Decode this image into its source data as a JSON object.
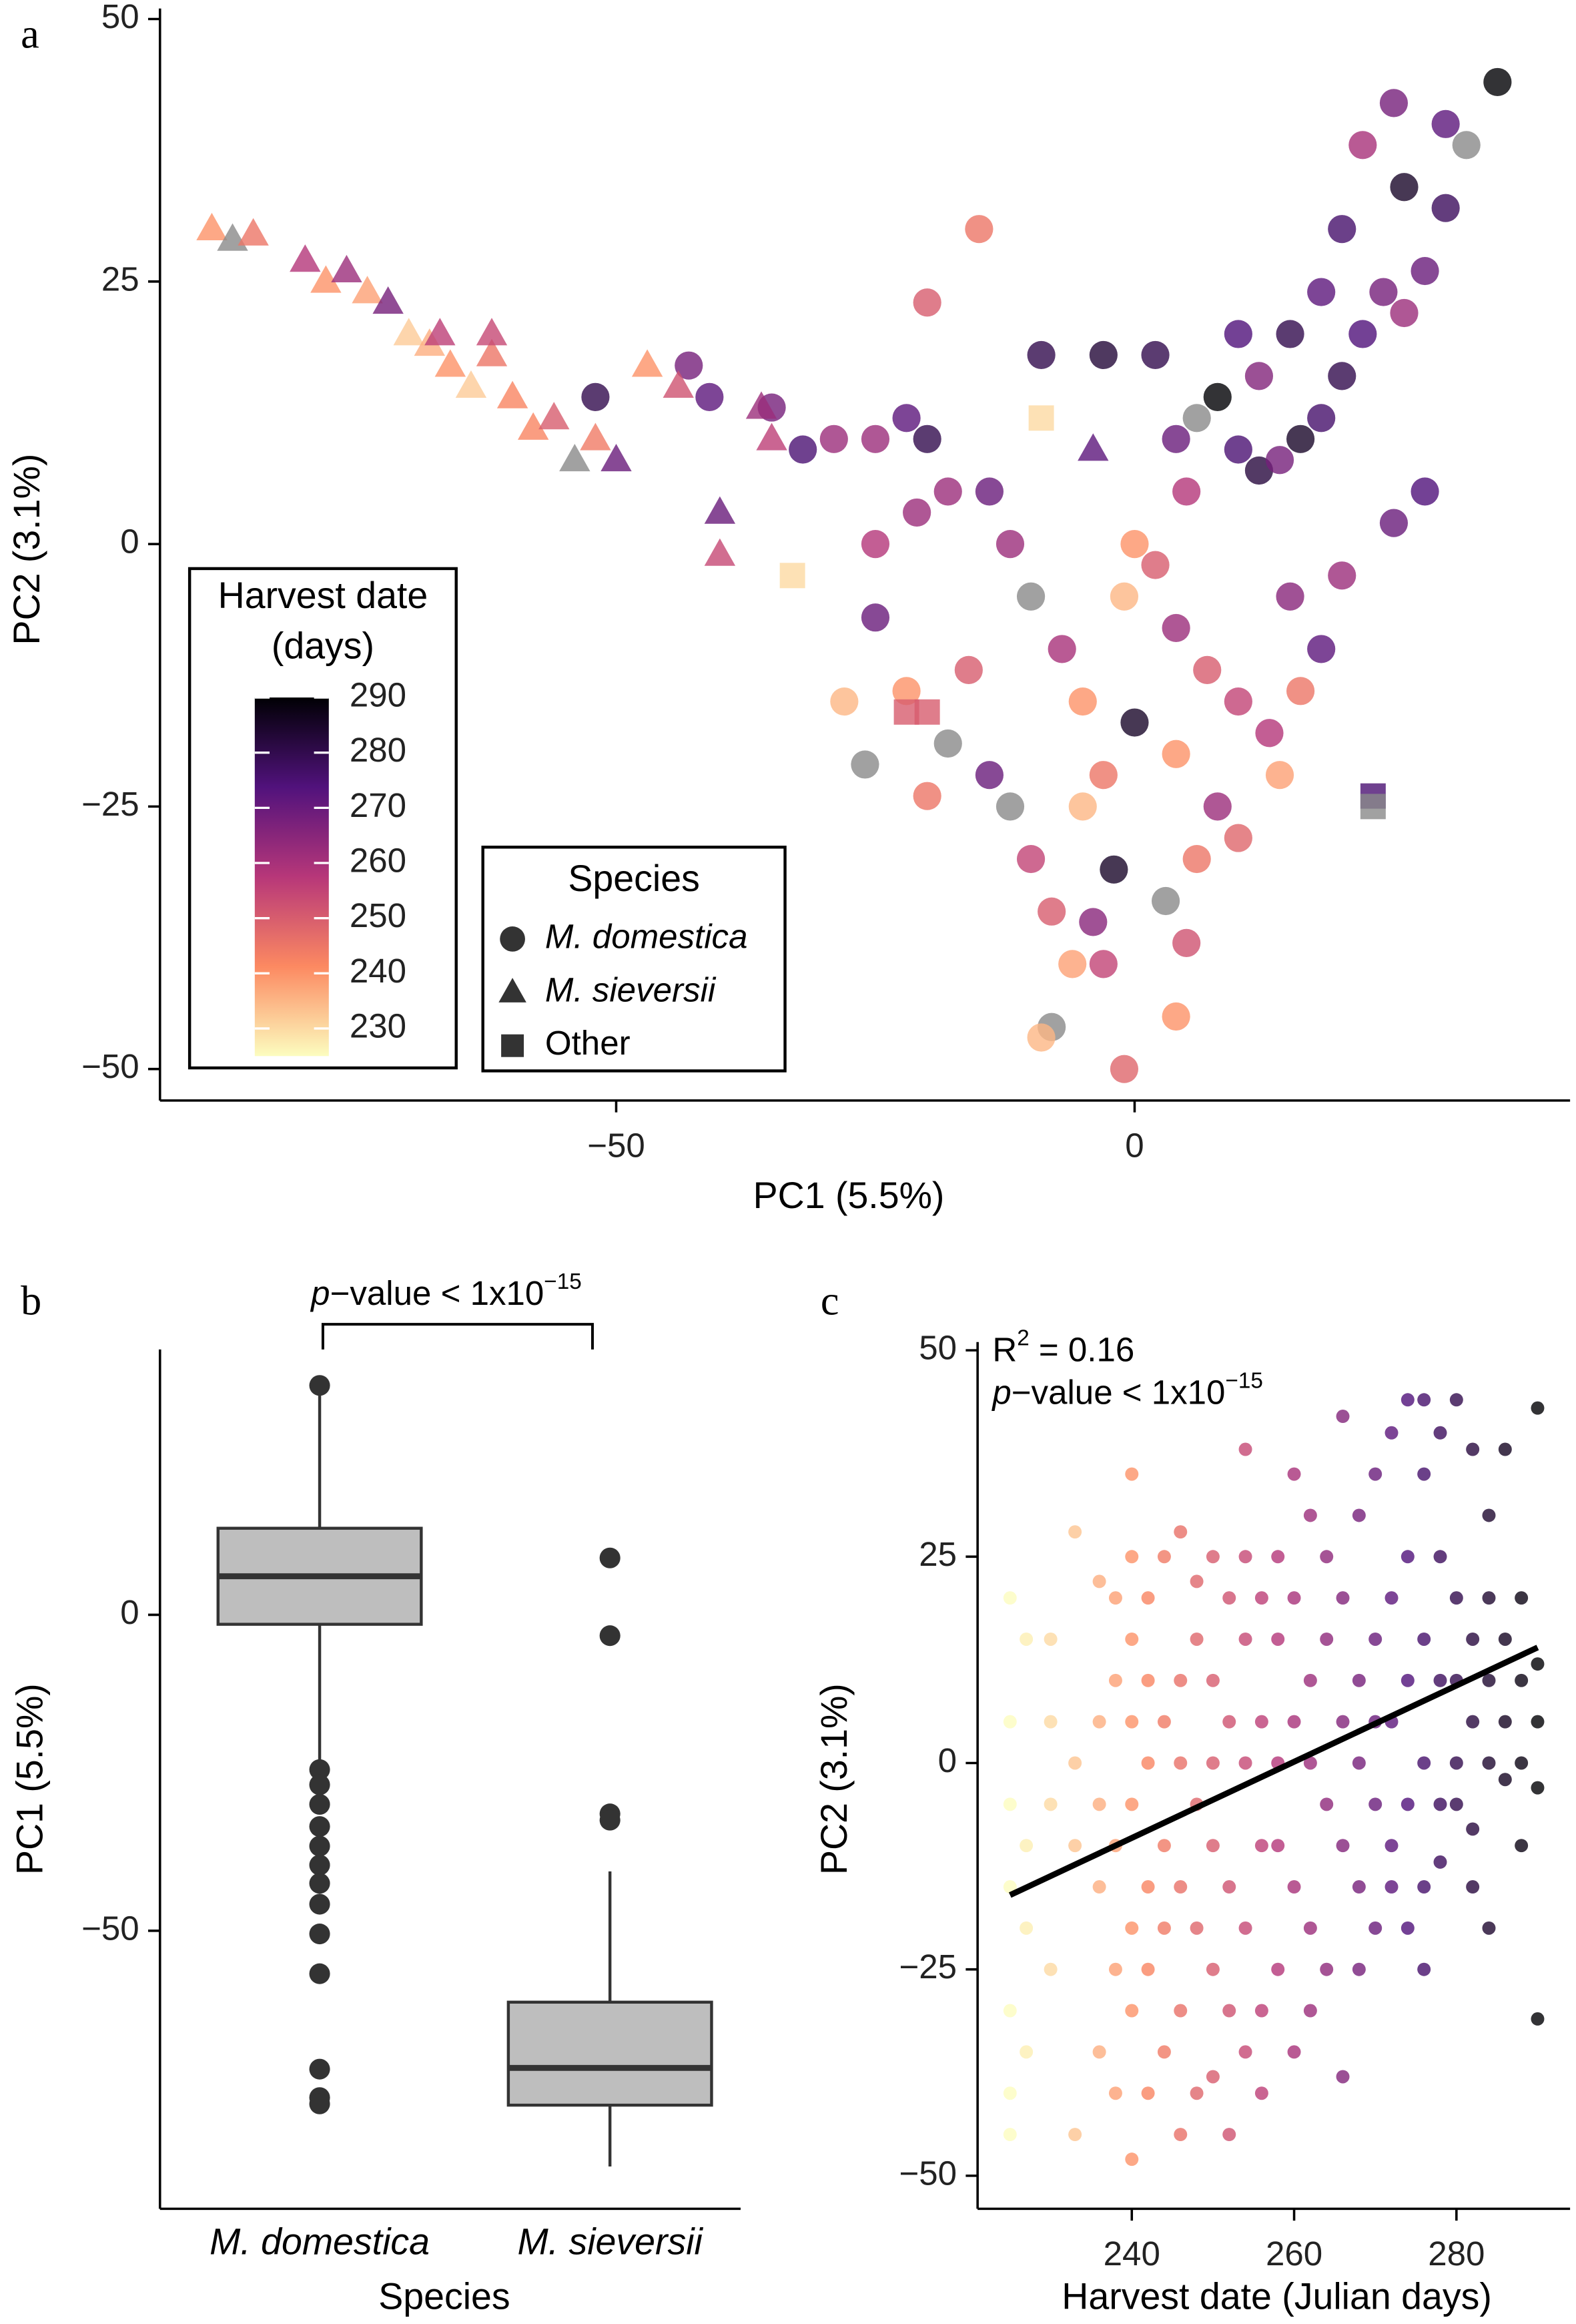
{
  "chart_data": [
    {
      "type": "scatter",
      "panel_label": "a",
      "x_label": "PC1 (5.5%)",
      "y_label": "PC2 (3.1%)",
      "xlim": [
        -94,
        42
      ],
      "ylim": [
        -53,
        51
      ],
      "xticks": [
        {
          "value": -50,
          "label": "−50"
        },
        0
      ],
      "yticks": [
        50,
        25,
        0,
        {
          "value": -25,
          "label": "−25"
        },
        {
          "value": -50,
          "label": "−50"
        }
      ],
      "colormap": [
        "#fcfdbf",
        "#fc8961",
        "#b73779",
        "#51127c",
        "#000004"
      ],
      "color_lim": [
        225,
        290
      ],
      "na_color": "#8a8a8a",
      "colorbar_title": [
        "Harvest date",
        "(days)"
      ],
      "colorbar_ticks": [
        230,
        240,
        250,
        260,
        270,
        280,
        290
      ],
      "legend_title": "Species",
      "series": [
        {
          "name": "M. domestica",
          "marker": "circle",
          "x": [
            -25,
            -52,
            -43,
            -41,
            -35,
            -32,
            -29,
            -25,
            -22,
            -20,
            -21,
            -18,
            -25,
            -28,
            -26,
            -22,
            -20,
            -18,
            -16,
            -14,
            -12,
            -10,
            -8,
            -6,
            -8,
            -2,
            -3,
            -5,
            -7,
            -10,
            -12,
            -14,
            -9,
            -3,
            2,
            4,
            6,
            8,
            10,
            12,
            14,
            16,
            18,
            20,
            22,
            24,
            26,
            28,
            30,
            26,
            22,
            25,
            30,
            32,
            35,
            20,
            18,
            15,
            12,
            10,
            5,
            2,
            0,
            -1,
            4,
            7,
            10,
            13,
            16,
            18,
            15,
            20,
            25,
            28,
            8,
            6,
            3,
            5,
            4,
            -1,
            -3,
            -4,
            10,
            14,
            -5,
            -15,
            -20,
            4,
            0,
            -9
          ],
          "y": [
            0,
            14,
            17,
            14,
            13,
            9,
            10,
            10,
            12,
            10,
            3,
            5,
            -7,
            -15,
            -21,
            -14,
            -24,
            -19,
            -12,
            -22,
            -25,
            -30,
            -35,
            -40,
            -46,
            -31,
            -22,
            -15,
            -10,
            -5,
            0,
            5,
            18,
            18,
            18,
            10,
            12,
            14,
            9,
            7,
            8,
            10,
            12,
            16,
            20,
            24,
            22,
            26,
            32,
            34,
            38,
            42,
            40,
            38,
            44,
            30,
            24,
            20,
            16,
            20,
            5,
            -2,
            0,
            -5,
            -8,
            -12,
            -15,
            -18,
            -14,
            -10,
            -5,
            -3,
            2,
            5,
            -25,
            -30,
            -34,
            -38,
            -45,
            -50,
            -40,
            -36,
            -28,
            -22,
            -25,
            30,
            23,
            -20,
            -17,
            -47
          ],
          "harvest_date": [
            258,
            280,
            268,
            272,
            268,
            275,
            262,
            262,
            272,
            280,
            262,
            262,
            270,
            235,
            null,
            240,
            245,
            null,
            250,
            270,
            null,
            255,
            250,
            238,
            null,
            285,
            245,
            240,
            260,
            null,
            262,
            270,
            280,
            283,
            280,
            270,
            null,
            290,
            275,
            282,
            268,
            285,
            276,
            280,
            274,
            268,
            262,
            270,
            278,
            285,
            260,
            268,
            272,
            null,
            290,
            276,
            272,
            280,
            266,
            274,
            258,
            250,
            240,
            235,
            262,
            250,
            255,
            258,
            245,
            272,
            265,
            262,
            270,
            274,
            262,
            245,
            null,
            252,
            240,
            248,
            255,
            265,
            248,
            238,
            235,
            245,
            250,
            240,
            285,
            235
          ]
        },
        {
          "name": "M. sieversii",
          "marker": "triangle",
          "x": [
            -89,
            -87,
            -85,
            -80,
            -78,
            -76,
            -74,
            -72,
            -70,
            -68,
            -66,
            -64,
            -62,
            -60,
            -58,
            -56,
            -54,
            -52,
            -50,
            -47,
            -44,
            -36,
            -35,
            -40,
            -40,
            -4,
            -67,
            -62
          ],
          "y": [
            30,
            29,
            29.5,
            27,
            25,
            26,
            24,
            23,
            20,
            19,
            17,
            15,
            18,
            14,
            11,
            12,
            8,
            10,
            8,
            17,
            15,
            13,
            10,
            3,
            -1,
            9,
            20,
            20
          ],
          "harvest_date": [
            240,
            null,
            245,
            258,
            240,
            262,
            238,
            268,
            232,
            236,
            240,
            232,
            245,
            242,
            242,
            250,
            null,
            244,
            270,
            240,
            252,
            262,
            256,
            270,
            254,
            272,
            256,
            254
          ]
        },
        {
          "name": "Other",
          "marker": "square",
          "x": [
            -33,
            -9,
            -22,
            -20,
            23,
            23
          ],
          "y": [
            -3,
            12,
            -16,
            -16,
            -24,
            -25
          ],
          "harvest_date": [
            230,
            230,
            250,
            250,
            275,
            null
          ]
        }
      ]
    },
    {
      "type": "box",
      "panel_label": "b",
      "x_label": "Species",
      "y_label": "PC1 (5.5%)",
      "ylim": [
        -94,
        42
      ],
      "yticks": [
        0,
        {
          "value": -50,
          "label": "−50"
        }
      ],
      "annotation": {
        "p": "p",
        "text": "−value < 1x10",
        "exp": "−15"
      },
      "box_color": "#bebebe",
      "categories": [
        "M. domestica",
        "M. sieversii"
      ],
      "boxes": [
        {
          "whisker_low": -24.1,
          "q1": -1.5,
          "median": 6.1,
          "q3": 13.7,
          "whisker_high": 36.3,
          "outliers": [
            36.3,
            -24.5,
            -26.9,
            -30,
            -33.5,
            -36.6,
            -39.6,
            -42.5,
            -45.8,
            -50.5,
            -56.8,
            -71.9,
            -76.4,
            -77.4
          ]
        },
        {
          "whisker_low": -87.3,
          "q1": -77.6,
          "median": -71.7,
          "q3": -61.3,
          "whisker_high": -40.6,
          "outliers": [
            9,
            -3.3,
            -31.5,
            -32.5
          ]
        }
      ]
    },
    {
      "type": "scatter",
      "panel_label": "c",
      "x_label": "Harvest date (Julian days)",
      "y_label": "PC2 (3.1%)",
      "xlim": [
        221,
        294
      ],
      "ylim": [
        -54,
        51
      ],
      "xticks": [
        240,
        260,
        280
      ],
      "yticks": [
        50,
        25,
        0,
        {
          "value": -25,
          "label": "−25"
        },
        {
          "value": -50,
          "label": "−50"
        }
      ],
      "colormap": [
        "#fcfdbf",
        "#fc8961",
        "#b73779",
        "#51127c",
        "#000004"
      ],
      "color_lim": [
        225,
        290
      ],
      "r2": {
        "r": "R",
        "exp": "2",
        "text": " = 0.16"
      },
      "annotation": {
        "p": "p",
        "text": "−value < 1x10",
        "exp": "−15"
      },
      "fit": {
        "x": [
          225,
          290
        ],
        "y": [
          -16,
          14
        ]
      },
      "x": [
        225,
        225,
        225,
        225,
        225,
        225,
        225,
        227,
        227,
        227,
        227,
        230,
        230,
        230,
        230,
        233,
        233,
        233,
        233,
        236,
        236,
        236,
        236,
        236,
        238,
        238,
        238,
        238,
        238,
        240,
        240,
        240,
        240,
        240,
        240,
        240,
        240,
        242,
        242,
        242,
        242,
        242,
        242,
        244,
        244,
        244,
        244,
        244,
        246,
        246,
        246,
        246,
        246,
        246,
        248,
        248,
        248,
        248,
        248,
        250,
        250,
        250,
        250,
        250,
        250,
        252,
        252,
        252,
        252,
        252,
        254,
        254,
        254,
        254,
        254,
        254,
        256,
        256,
        256,
        256,
        256,
        258,
        258,
        258,
        258,
        258,
        260,
        260,
        260,
        260,
        260,
        262,
        262,
        262,
        262,
        262,
        264,
        264,
        264,
        264,
        266,
        266,
        266,
        266,
        266,
        268,
        268,
        268,
        268,
        268,
        270,
        270,
        270,
        270,
        270,
        272,
        272,
        272,
        272,
        272,
        274,
        274,
        274,
        274,
        274,
        276,
        276,
        276,
        276,
        276,
        276,
        278,
        278,
        278,
        278,
        278,
        280,
        280,
        280,
        280,
        280,
        282,
        282,
        282,
        282,
        282,
        284,
        284,
        284,
        284,
        284,
        286,
        286,
        286,
        286,
        288,
        288,
        288,
        288,
        290,
        290,
        290,
        290,
        290
      ],
      "y": [
        -40,
        -30,
        -15,
        -5,
        5,
        20,
        -45,
        -20,
        -10,
        15,
        -35,
        -25,
        5,
        -5,
        15,
        -45,
        -10,
        28,
        0,
        -35,
        -15,
        5,
        22,
        -5,
        -10,
        -25,
        10,
        20,
        -40,
        35,
        -48,
        -20,
        -5,
        5,
        15,
        25,
        -30,
        -40,
        -15,
        0,
        20,
        -25,
        10,
        -35,
        5,
        -20,
        25,
        -10,
        -45,
        -30,
        10,
        28,
        0,
        -15,
        -40,
        -20,
        -5,
        15,
        22,
        -38,
        -25,
        0,
        10,
        25,
        -10,
        -30,
        -15,
        5,
        20,
        -45,
        38,
        -35,
        -20,
        0,
        15,
        25,
        -30,
        -10,
        5,
        20,
        -40,
        -25,
        0,
        15,
        25,
        -10,
        -35,
        -15,
        5,
        20,
        35,
        -20,
        0,
        10,
        30,
        -30,
        -25,
        -5,
        15,
        25,
        -38,
        -10,
        5,
        20,
        42,
        -15,
        0,
        10,
        30,
        -25,
        -20,
        5,
        15,
        35,
        -5,
        -10,
        5,
        20,
        40,
        -15,
        -5,
        10,
        25,
        44,
        -20,
        -15,
        0,
        15,
        35,
        44,
        -25,
        -5,
        10,
        25,
        40,
        -12,
        0,
        10,
        20,
        44,
        -5,
        -15,
        5,
        15,
        38,
        -8,
        0,
        10,
        20,
        30,
        -20,
        5,
        15,
        38,
        -2,
        0,
        10,
        20,
        -10,
        -31,
        5,
        12,
        -3,
        43
      ]
    }
  ]
}
